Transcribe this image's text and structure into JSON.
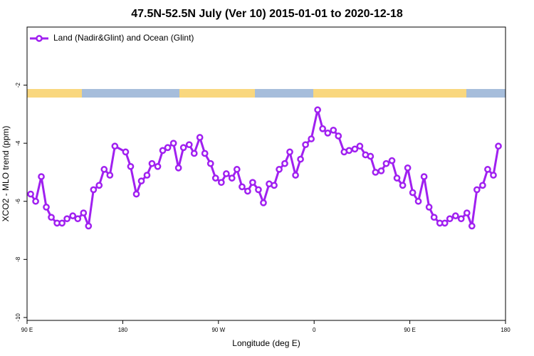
{
  "chart_data": {
    "type": "line",
    "title": "47.5N-52.5N July (Ver 10)   2015-01-01 to 2020-12-18",
    "x_label": "Longitude (deg E)",
    "y_label": "XCO2 - MLO trend (ppm)",
    "xlim": [
      90,
      540
    ],
    "xticks": [
      {
        "value": 90,
        "label": "90 E"
      },
      180,
      {
        "value": 270,
        "label": "90 W"
      },
      {
        "value": 360,
        "label": "0"
      },
      {
        "value": 450,
        "label": "90 E"
      },
      {
        "value": 540,
        "label": "180"
      }
    ],
    "ylim": [
      -10.1,
      0
    ],
    "yticks": [
      -10,
      -8,
      -6,
      -4,
      -2
    ],
    "legend": "top-left",
    "grid": false,
    "x": [
      93.4,
      98.1,
      103.4,
      108.1,
      112.8,
      118.2,
      122.9,
      127.6,
      133,
      137.7,
      143.1,
      147.8,
      152.5,
      157.8,
      162.5,
      167.9,
      172.6,
      182.7,
      187.4,
      192.8,
      197.5,
      202.8,
      207.5,
      212.9,
      217.6,
      222.3,
      227.7,
      232.4,
      237.1,
      242.5,
      247.2,
      252.5,
      257.2,
      262.6,
      267.3,
      272.7,
      277.4,
      282.7,
      287.4,
      292.2,
      297.5,
      302.2,
      307.6,
      312.3,
      317.7,
      322.4,
      327.1,
      332.4,
      337.1,
      342.5,
      347.2,
      351.9,
      357.3,
      363.3,
      368,
      372.8,
      378.1,
      382.8,
      388.2,
      392.9,
      398.3,
      403,
      408.3,
      413,
      417.7,
      423.1,
      427.8,
      433.2,
      437.9,
      443.3,
      448,
      452.7,
      458,
      463.4,
      468.1,
      472.8,
      478.2,
      482.9,
      487.6,
      493,
      498.3,
      503.7,
      508.4,
      513.1,
      518.5,
      523.2,
      528.6,
      533.3
    ],
    "series": [
      {
        "name": "Land (Nadir&Glint) and Ocean (Glint)",
        "color": "#a020f0",
        "values": [
          -5.75,
          -6.0,
          -5.15,
          -6.2,
          -6.55,
          -6.75,
          -6.75,
          -6.6,
          -6.5,
          -6.6,
          -6.4,
          -6.85,
          -5.6,
          -5.45,
          -4.9,
          -5.1,
          -4.1,
          -4.3,
          -4.8,
          -5.75,
          -5.3,
          -5.1,
          -4.7,
          -4.8,
          -4.25,
          -4.15,
          -4.0,
          -4.85,
          -4.15,
          -4.05,
          -4.35,
          -3.8,
          -4.35,
          -4.7,
          -5.2,
          -5.35,
          -5.05,
          -5.2,
          -4.9,
          -5.5,
          -5.65,
          -5.35,
          -5.6,
          -6.05,
          -5.4,
          -5.45,
          -4.9,
          -4.7,
          -4.3,
          -5.1,
          -4.55,
          -4.05,
          -3.85,
          -2.85,
          -3.5,
          -3.65,
          -3.55,
          -3.75,
          -4.3,
          -4.25,
          -4.2,
          -4.1,
          -4.4,
          -4.45,
          -5.0,
          -4.95,
          -4.7,
          -4.6,
          -5.2,
          -5.45,
          -4.85,
          -5.7,
          -6.0,
          -5.15,
          -6.2,
          -6.55,
          -6.75,
          -6.75,
          -6.6,
          -6.5,
          -6.6,
          -6.4,
          -6.85,
          -5.6,
          -5.45,
          -4.9,
          -5.1,
          -4.1
        ]
      }
    ]
  }
}
